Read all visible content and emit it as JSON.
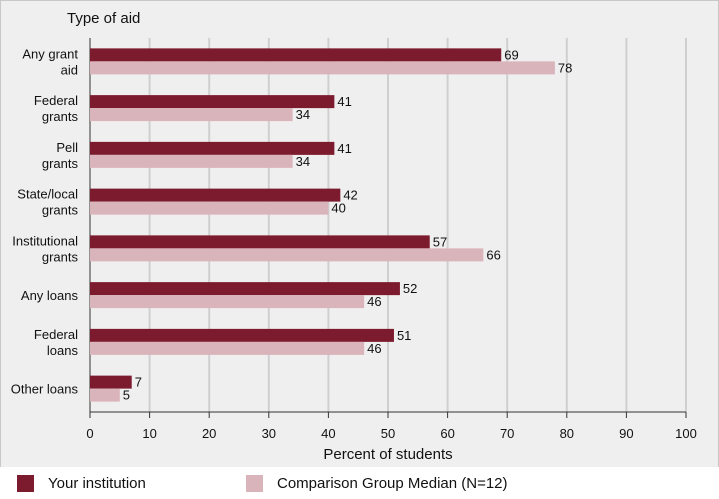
{
  "chart_data": {
    "type": "bar",
    "orientation": "horizontal",
    "yaxis_title": "Type of aid",
    "xlabel": "Percent of students",
    "xlim": [
      0,
      100
    ],
    "xticks": [
      0,
      10,
      20,
      30,
      40,
      50,
      60,
      70,
      80,
      90,
      100
    ],
    "grid": true,
    "legend_position": "bottom",
    "categories": [
      [
        "Any grant",
        "aid"
      ],
      [
        "Federal",
        "grants"
      ],
      [
        "Pell",
        "grants"
      ],
      [
        "State/local",
        "grants"
      ],
      [
        "Institutional",
        "grants"
      ],
      [
        "Any loans"
      ],
      [
        "Federal",
        "loans"
      ],
      [
        "Other loans"
      ]
    ],
    "series": [
      {
        "name": "Your institution",
        "color": "#7c1a2e",
        "values": [
          69,
          41,
          41,
          42,
          57,
          52,
          51,
          7
        ]
      },
      {
        "name": "Comparison Group Median (N=12)",
        "color": "#d9b4bb",
        "values": [
          78,
          34,
          34,
          40,
          66,
          46,
          46,
          5
        ]
      }
    ]
  }
}
